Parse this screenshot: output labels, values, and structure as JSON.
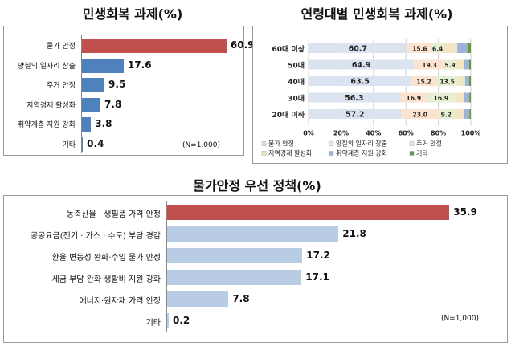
{
  "chart_data": [
    {
      "type": "bar",
      "orientation": "horizontal",
      "title": "민생회복 과제(%)",
      "categories": [
        "물가 안정",
        "양질의 일자리 창출",
        "주거 안정",
        "지역경제 활성화",
        "취약계층 지원 강화",
        "기타"
      ],
      "values": [
        60.9,
        17.6,
        9.5,
        7.8,
        3.8,
        0.4
      ],
      "value_labels": [
        "60.9",
        "17.6",
        "9.5",
        "7.8",
        "3.8",
        "0.4"
      ],
      "note": "(N=1,000)",
      "highlight_color": "#c0504d",
      "bar_color": "#4f81bd",
      "xlim": [
        0,
        65
      ]
    },
    {
      "type": "bar",
      "orientation": "horizontal",
      "stacked": true,
      "title": "연령대별 민생회복 과제(%)",
      "categories": [
        "60대 이상",
        "50대",
        "40대",
        "30대",
        "20대 이하"
      ],
      "series": [
        {
          "name": "물가 안정",
          "values": [
            60.7,
            64.9,
            63.5,
            56.3,
            57.2
          ],
          "labels": [
            "60.7",
            "64.9",
            "63.5",
            "56.3",
            "57.2"
          ],
          "color": "#dce3f0"
        },
        {
          "name": "양질의 일자리 창출",
          "values": [
            15.6,
            19.3,
            15.2,
            16.9,
            23.0
          ],
          "labels": [
            "15.6",
            "19.3",
            "15.2",
            "16.9",
            "23.0"
          ],
          "color": "#fbe3cf"
        },
        {
          "name": "주거 안정",
          "values": [
            6.4,
            5.9,
            13.5,
            16.9,
            9.2
          ],
          "labels": [
            "6.4",
            "5.9",
            "13.5",
            "16.9",
            "9.2"
          ],
          "color": "#e7f0d4"
        },
        {
          "name": "지역경제 활성화",
          "values": [
            9.0,
            5.5,
            4.3,
            5.6,
            6.2
          ],
          "labels": [
            "",
            "",
            "",
            "",
            ""
          ],
          "color": "#f2e6c4"
        },
        {
          "name": "취약계층 지원 강화",
          "values": [
            6.2,
            3.4,
            2.5,
            3.4,
            3.6
          ],
          "labels": [
            "",
            "",
            "",
            "",
            ""
          ],
          "color": "#9fb3d8"
        },
        {
          "name": "기타",
          "values": [
            2.1,
            1.0,
            1.0,
            0.9,
            0.8
          ],
          "labels": [
            "",
            "",
            "",
            "",
            ""
          ],
          "color": "#5e9b3f"
        }
      ],
      "xticks": [
        "0%",
        "20%",
        "40%",
        "60%",
        "80%",
        "100%"
      ],
      "xlim": [
        0,
        100
      ],
      "legend_position": "bottom",
      "grid": true
    },
    {
      "type": "bar",
      "orientation": "horizontal",
      "title": "물가안정 우선 정책(%)",
      "categories": [
        "농축산물 · 생필품 가격 안정",
        "공공요금(전기 · 가스 · 수도) 부담 경감",
        "환율 변동성 완화·수입 물가 안정",
        "세금 부담 완화·생활비 지원 강화",
        "에너지·원자재 가격 안정",
        "기타"
      ],
      "values": [
        35.9,
        21.8,
        17.2,
        17.1,
        7.8,
        0.2
      ],
      "value_labels": [
        "35.9",
        "21.8",
        "17.2",
        "17.1",
        "7.8",
        "0.2"
      ],
      "note": "(N=1,000)",
      "highlight_color": "#c0504d",
      "bar_color": "#b8cce4",
      "xlim": [
        0,
        37
      ]
    }
  ]
}
